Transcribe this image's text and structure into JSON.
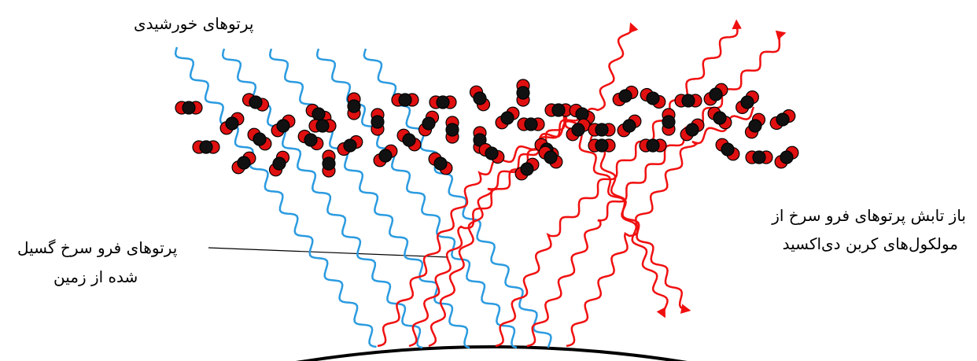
{
  "labels": {
    "solar_rays": "پرتوهای خورشیدی",
    "emitted_infrared": [
      "پرتوهای فرو سرخ گسیل",
      "شده از زمین"
    ],
    "reemitted_infrared": [
      "باز تابش پرتوهای فرو سرخ از",
      "مولکول‌های کربن دی‌اکسید"
    ]
  }
}
